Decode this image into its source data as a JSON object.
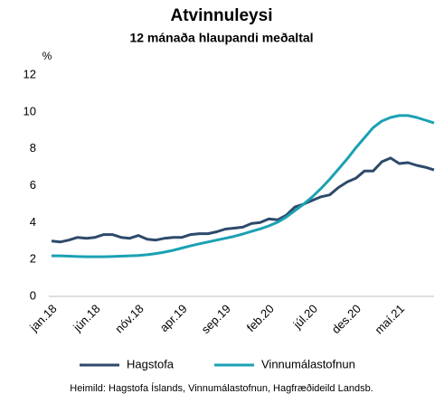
{
  "chart_data": {
    "type": "line",
    "title": "Atvinnuleysi",
    "subtitle": "12 mánaða hlaupandi meðaltal",
    "y_label": "%",
    "source": "Heimild: Hagstofa Íslands, Vinnumálastofnun, Hagfræðideild Landsb.",
    "categories": [
      "jan.18",
      null,
      null,
      null,
      null,
      "jún.18",
      null,
      null,
      null,
      null,
      "nóv.18",
      null,
      null,
      null,
      null,
      "apr.19",
      null,
      null,
      null,
      null,
      "sep.19",
      null,
      null,
      null,
      null,
      "feb.20",
      null,
      null,
      null,
      null,
      "júl.20",
      null,
      null,
      null,
      null,
      "des.20",
      null,
      null,
      null,
      null,
      "maí.21",
      null,
      null,
      null,
      null
    ],
    "series": [
      {
        "name": "Hagstofa",
        "color": "#2e4a6b",
        "values": [
          3.0,
          2.95,
          3.05,
          3.2,
          3.15,
          3.2,
          3.35,
          3.35,
          3.2,
          3.15,
          3.3,
          3.1,
          3.05,
          3.15,
          3.2,
          3.2,
          3.35,
          3.4,
          3.4,
          3.5,
          3.65,
          3.7,
          3.75,
          3.95,
          4.0,
          4.2,
          4.15,
          4.4,
          4.85,
          5.0,
          5.2,
          5.4,
          5.5,
          5.9,
          6.2,
          6.4,
          6.8,
          6.8,
          7.3,
          7.5,
          7.2,
          7.25,
          7.1,
          7.0,
          6.85
        ]
      },
      {
        "name": "Vinnumálastofnun",
        "color": "#1ba1b3",
        "values": [
          2.2,
          2.2,
          2.18,
          2.16,
          2.15,
          2.15,
          2.15,
          2.16,
          2.18,
          2.2,
          2.22,
          2.26,
          2.32,
          2.4,
          2.5,
          2.62,
          2.74,
          2.85,
          2.95,
          3.05,
          3.15,
          3.25,
          3.38,
          3.52,
          3.66,
          3.82,
          4.02,
          4.3,
          4.65,
          5.0,
          5.4,
          5.85,
          6.35,
          6.9,
          7.45,
          8.05,
          8.6,
          9.15,
          9.5,
          9.7,
          9.8,
          9.8,
          9.7,
          9.55,
          9.4
        ]
      }
    ],
    "ylim": [
      0,
      12
    ],
    "yticks": [
      0,
      2,
      4,
      6,
      8,
      10,
      12
    ],
    "grid": false
  }
}
